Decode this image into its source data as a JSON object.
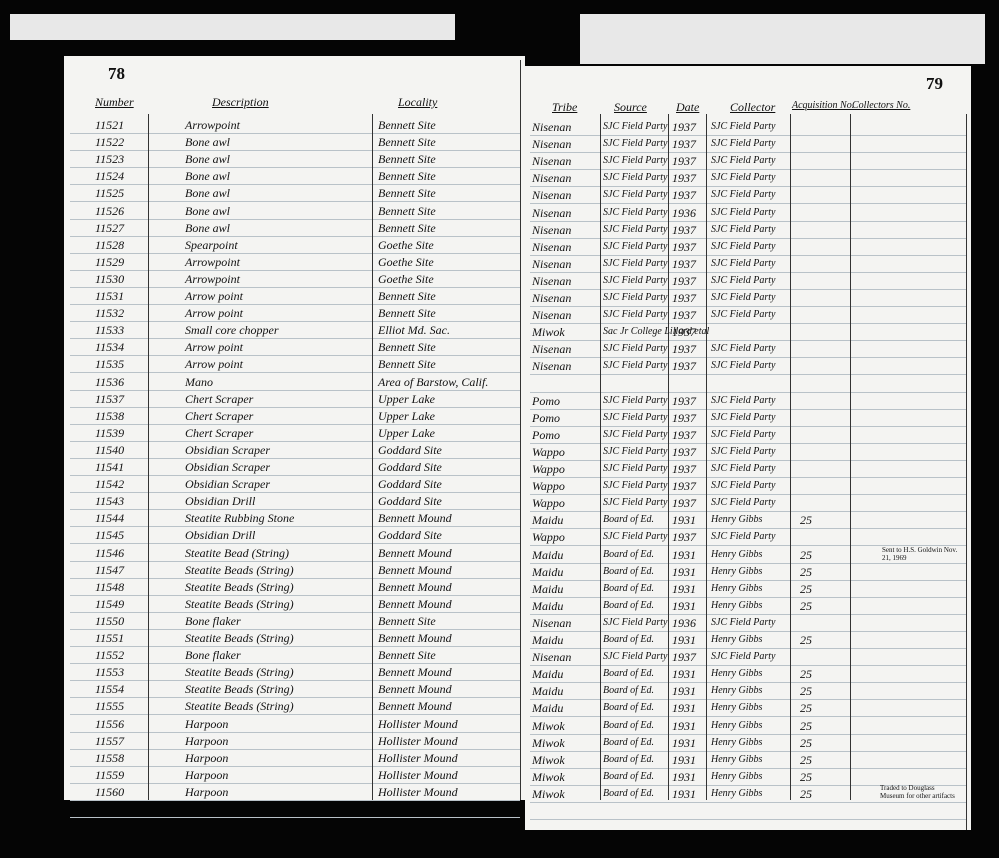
{
  "left_page": {
    "page_number": "78",
    "headers": [
      "Number",
      "Description",
      "Locality"
    ]
  },
  "right_page": {
    "page_number": "79",
    "headers": [
      "Tribe",
      "Source",
      "Date",
      "Collector",
      "Acquisition No.",
      "Collectors No."
    ]
  },
  "rows": [
    [
      "11521",
      "Arrowpoint",
      "Bennett Site",
      "Nisenan",
      "SJC Field Party",
      "1937",
      "SJC Field Party",
      null
    ],
    [
      "11522",
      "Bone awl",
      "Bennett Site",
      "Nisenan",
      "SJC Field Party",
      "1937",
      "SJC Field Party",
      null
    ],
    [
      "11523",
      "Bone awl",
      "Bennett Site",
      "Nisenan",
      "SJC Field Party",
      "1937",
      "SJC Field Party",
      null
    ],
    [
      "11524",
      "Bone awl",
      "Bennett Site",
      "Nisenan",
      "SJC Field Party",
      "1937",
      "SJC Field Party",
      null
    ],
    [
      "11525",
      "Bone awl",
      "Bennett Site",
      "Nisenan",
      "SJC Field Party",
      "1937",
      "SJC Field Party",
      null
    ],
    [
      "11526",
      "Bone awl",
      "Bennett Site",
      "Nisenan",
      "SJC Field Party",
      "1936",
      "SJC Field Party",
      null
    ],
    [
      "11527",
      "Bone awl",
      "Bennett Site",
      "Nisenan",
      "SJC Field Party",
      "1937",
      "SJC Field Party",
      null
    ],
    [
      "11528",
      "Spearpoint",
      "Goethe Site",
      "Nisenan",
      "SJC Field Party",
      "1937",
      "SJC Field Party",
      null
    ],
    [
      "11529",
      "Arrowpoint",
      "Goethe Site",
      "Nisenan",
      "SJC Field Party",
      "1937",
      "SJC Field Party",
      null
    ],
    [
      "11530",
      "Arrowpoint",
      "Goethe Site",
      "Nisenan",
      "SJC Field Party",
      "1937",
      "SJC Field Party",
      null
    ],
    [
      "11531",
      "Arrow point",
      "Bennett Site",
      "Nisenan",
      "SJC Field Party",
      "1937",
      "SJC Field Party",
      null
    ],
    [
      "11532",
      "Arrow point",
      "Bennett Site",
      "Nisenan",
      "SJC Field Party",
      "1937",
      "SJC Field Party",
      null
    ],
    [
      "11533",
      "Small core chopper",
      "Elliot Md. Sac.",
      "Miwok",
      "Sac Jr College Lillard etal",
      "1937",
      null,
      null
    ],
    [
      "11534",
      "Arrow point",
      "Bennett Site",
      "Nisenan",
      "SJC Field Party",
      "1937",
      "SJC Field Party",
      null
    ],
    [
      "11535",
      "Arrow point",
      "Bennett Site",
      "Nisenan",
      "SJC Field Party",
      "1937",
      "SJC Field Party",
      null
    ],
    [
      "11536",
      "Mano",
      "Area of Barstow, Calif.",
      null,
      null,
      null,
      null,
      null
    ],
    [
      "11537",
      "Chert Scraper",
      "Upper Lake",
      "Pomo",
      "SJC Field Party",
      "1937",
      "SJC Field Party",
      null
    ],
    [
      "11538",
      "Chert Scraper",
      "Upper Lake",
      "Pomo",
      "SJC Field Party",
      "1937",
      "SJC Field Party",
      null
    ],
    [
      "11539",
      "Chert Scraper",
      "Upper Lake",
      "Pomo",
      "SJC Field Party",
      "1937",
      "SJC Field Party",
      null
    ],
    [
      "11540",
      "Obsidian Scraper",
      "Goddard Site",
      "Wappo",
      "SJC Field Party",
      "1937",
      "SJC Field Party",
      null
    ],
    [
      "11541",
      "Obsidian Scraper",
      "Goddard Site",
      "Wappo",
      "SJC Field Party",
      "1937",
      "SJC Field Party",
      null
    ],
    [
      "11542",
      "Obsidian Scraper",
      "Goddard Site",
      "Wappo",
      "SJC Field Party",
      "1937",
      "SJC Field Party",
      null
    ],
    [
      "11543",
      "Obsidian Drill",
      "Goddard Site",
      "Wappo",
      "SJC Field Party",
      "1937",
      "SJC Field Party",
      null
    ],
    [
      "11544",
      "Steatite Rubbing Stone",
      "Bennett Mound",
      "Maidu",
      "Board of Ed.",
      "1931",
      "Henry Gibbs",
      "25"
    ],
    [
      "11545",
      "Obsidian Drill",
      "Goddard Site",
      "Wappo",
      "SJC Field Party",
      "1937",
      "SJC Field Party",
      null
    ],
    [
      "11546",
      "Steatite Bead (String)",
      "Bennett Mound",
      "Maidu",
      "Board of Ed.",
      "1931",
      "Henry Gibbs",
      "25"
    ],
    [
      "11547",
      "Steatite Beads (String)",
      "Bennett Mound",
      "Maidu",
      "Board of Ed.",
      "1931",
      "Henry Gibbs",
      "25"
    ],
    [
      "11548",
      "Steatite Beads (String)",
      "Bennett Mound",
      "Maidu",
      "Board of Ed.",
      "1931",
      "Henry Gibbs",
      "25"
    ],
    [
      "11549",
      "Steatite Beads (String)",
      "Bennett Mound",
      "Maidu",
      "Board of Ed.",
      "1931",
      "Henry Gibbs",
      "25"
    ],
    [
      "11550",
      "Bone flaker",
      "Bennett Site",
      "Nisenan",
      "SJC Field Party",
      "1936",
      "SJC Field Party",
      null
    ],
    [
      "11551",
      "Steatite Beads (String)",
      "Bennett Mound",
      "Maidu",
      "Board of Ed.",
      "1931",
      "Henry Gibbs",
      "25"
    ],
    [
      "11552",
      "Bone flaker",
      "Bennett Site",
      "Nisenan",
      "SJC Field Party",
      "1937",
      "SJC Field Party",
      null
    ],
    [
      "11553",
      "Steatite Beads (String)",
      "Bennett Mound",
      "Maidu",
      "Board of Ed.",
      "1931",
      "Henry Gibbs",
      "25"
    ],
    [
      "11554",
      "Steatite Beads (String)",
      "Bennett Mound",
      "Maidu",
      "Board of Ed.",
      "1931",
      "Henry Gibbs",
      "25"
    ],
    [
      "11555",
      "Steatite Beads (String)",
      "Bennett Mound",
      "Maidu",
      "Board of Ed.",
      "1931",
      "Henry Gibbs",
      "25"
    ],
    [
      "11556",
      "Harpoon",
      "Hollister Mound",
      "Miwok",
      "Board of Ed.",
      "1931",
      "Henry Gibbs",
      "25"
    ],
    [
      "11557",
      "Harpoon",
      "Hollister Mound",
      "Miwok",
      "Board of Ed.",
      "1931",
      "Henry Gibbs",
      "25"
    ],
    [
      "11558",
      "Harpoon",
      "Hollister Mound",
      "Miwok",
      "Board of Ed.",
      "1931",
      "Henry Gibbs",
      "25"
    ],
    [
      "11559",
      "Harpoon",
      "Hollister Mound",
      "Miwok",
      "Board of Ed.",
      "1931",
      "Henry Gibbs",
      "25"
    ],
    [
      "11560",
      "Harpoon",
      "Hollister Mound",
      "Miwok",
      "Board of Ed.",
      "1931",
      "Henry Gibbs",
      "25"
    ]
  ],
  "notes": [
    "Sent to H.S. Goldwin Nov. 21, 1969",
    "Traded to Douglass Museum for other artifacts"
  ]
}
